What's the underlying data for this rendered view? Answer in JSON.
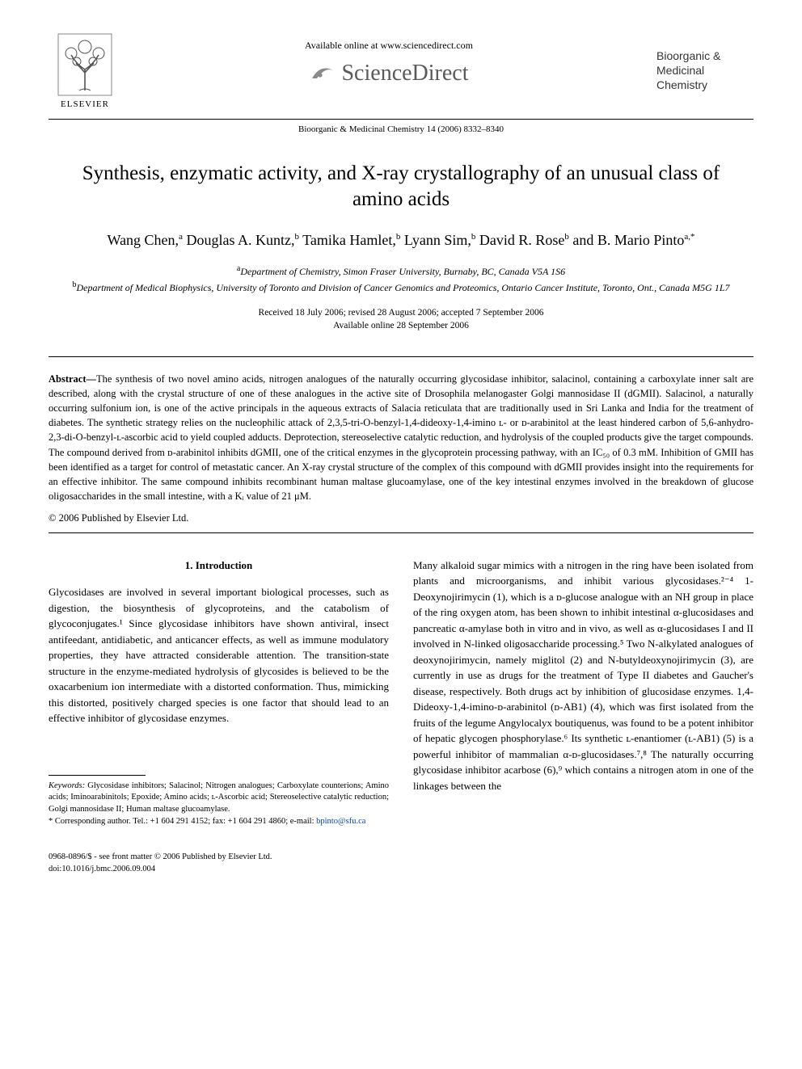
{
  "header": {
    "available_online": "Available online at www.sciencedirect.com",
    "brand": "ScienceDirect",
    "publisher": "ELSEVIER",
    "journal_name_1": "Bioorganic &",
    "journal_name_2": "Medicinal",
    "journal_name_3": "Chemistry",
    "citation": "Bioorganic & Medicinal Chemistry 14 (2006) 8332–8340"
  },
  "title": "Synthesis, enzymatic activity, and X-ray crystallography of an unusual class of amino acids",
  "authors_html": "Wang Chen,<sup>a</sup> Douglas A. Kuntz,<sup>b</sup> Tamika Hamlet,<sup>b</sup> Lyann Sim,<sup>b</sup> David R. Rose<sup>b</sup> and B. Mario Pinto<sup>a,*</sup>",
  "affiliations": {
    "a": "Department of Chemistry, Simon Fraser University, Burnaby, BC, Canada V5A 1S6",
    "b": "Department of Medical Biophysics, University of Toronto and Division of Cancer Genomics and Proteomics, Ontario Cancer Institute, Toronto, Ont., Canada M5G 1L7"
  },
  "dates": {
    "line1": "Received 18 July 2006; revised 28 August 2006; accepted 7 September 2006",
    "line2": "Available online 28 September 2006"
  },
  "abstract_label": "Abstract—",
  "abstract_body": "The synthesis of two novel amino acids, nitrogen analogues of the naturally occurring glycosidase inhibitor, salacinol, containing a carboxylate inner salt are described, along with the crystal structure of one of these analogues in the active site of Drosophila melanogaster Golgi mannosidase II (dGMII). Salacinol, a naturally occurring sulfonium ion, is one of the active principals in the aqueous extracts of Salacia reticulata that are traditionally used in Sri Lanka and India for the treatment of diabetes. The synthetic strategy relies on the nucleophilic attack of 2,3,5-tri-O-benzyl-1,4-dideoxy-1,4-imino ʟ- or ᴅ-arabinitol at the least hindered carbon of 5,6-anhydro-2,3-di-O-benzyl-ʟ-ascorbic acid to yield coupled adducts. Deprotection, stereoselective catalytic reduction, and hydrolysis of the coupled products give the target compounds. The compound derived from ᴅ-arabinitol inhibits dGMII, one of the critical enzymes in the glycoprotein processing pathway, with an IC₅₀ of 0.3 mM. Inhibition of GMII has been identified as a target for control of metastatic cancer. An X-ray crystal structure of the complex of this compound with dGMII provides insight into the requirements for an effective inhibitor. The same compound inhibits recombinant human maltase glucoamylase, one of the key intestinal enzymes involved in the breakdown of glucose oligosaccharides in the small intestine, with a Kᵢ value of 21 μM.",
  "copyright": "© 2006 Published by Elsevier Ltd.",
  "intro": {
    "heading": "1. Introduction",
    "col1_text": "Glycosidases are involved in several important biological processes, such as digestion, the biosynthesis of glycoproteins, and the catabolism of glycoconjugates.¹ Since glycosidase inhibitors have shown antiviral, insect antifeedant, antidiabetic, and anticancer effects, as well as immune modulatory properties, they have attracted considerable attention. The transition-state structure in the enzyme-mediated hydrolysis of glycosides is believed to be the oxacarbenium ion intermediate with a distorted conformation. Thus, mimicking this distorted, positively charged species is one factor that should lead to an effective inhibitor of glycosidase enzymes.",
    "col2_text": "Many alkaloid sugar mimics with a nitrogen in the ring have been isolated from plants and microorganisms, and inhibit various glycosidases.²⁻⁴ 1-Deoxynojirimycin (1), which is a ᴅ-glucose analogue with an NH group in place of the ring oxygen atom, has been shown to inhibit intestinal α-glucosidases and pancreatic α-amylase both in vitro and in vivo, as well as α-glucosidases I and II involved in N-linked oligosaccharide processing.⁵ Two N-alkylated analogues of deoxynojirimycin, namely miglitol (2) and N-butyldeoxynojirimycin (3), are currently in use as drugs for the treatment of Type II diabetes and Gaucher's disease, respectively. Both drugs act by inhibition of glucosidase enzymes. 1,4-Dideoxy-1,4-imino-ᴅ-arabinitol (ᴅ-AB1) (4), which was first isolated from the fruits of the legume Angylocalyx boutiquenus, was found to be a potent inhibitor of hepatic glycogen phosphorylase.⁶ Its synthetic ʟ-enantiomer (ʟ-AB1) (5) is a powerful inhibitor of mammalian α-ᴅ-glucosidases.⁷,⁸ The naturally occurring glycosidase inhibitor acarbose (6),⁹ which contains a nitrogen atom in one of the linkages between the"
  },
  "footnotes": {
    "keywords_label": "Keywords:",
    "keywords": " Glycosidase inhibitors; Salacinol; Nitrogen analogues; Carboxylate counterions; Amino acids; Iminoarabinitols; Epoxide; Amino acids; ʟ-Ascorbic acid; Stereoselective catalytic reduction; Golgi mannosidase II; Human maltase glucoamylase.",
    "corr_label": "* Corresponding author. Tel.: +1 604 291 4152; fax: +1 604 291 4860; e-mail: ",
    "email": "bpinto@sfu.ca"
  },
  "footer": {
    "line1": "0968-0896/$ - see front matter © 2006 Published by Elsevier Ltd.",
    "line2": "doi:10.1016/j.bmc.2006.09.004"
  },
  "colors": {
    "text": "#000000",
    "background": "#ffffff",
    "link": "#0645ad",
    "brand_gray": "#5a5a5a",
    "swoosh": "#8a8a8a"
  }
}
